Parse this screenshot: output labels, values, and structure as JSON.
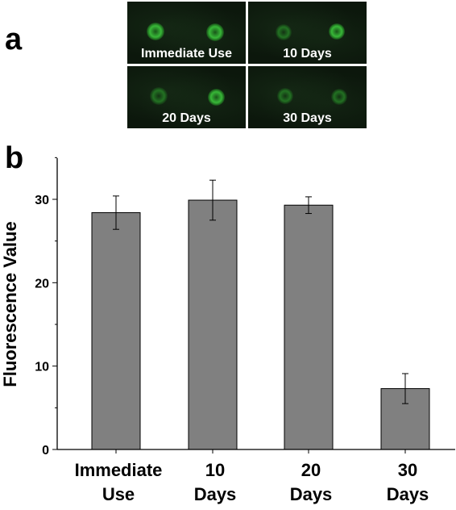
{
  "panels": {
    "a_label": "a",
    "b_label": "b"
  },
  "micrographs": [
    {
      "caption": "Immediate Use",
      "intensity": "bright"
    },
    {
      "caption": "10 Days",
      "intensity": "dim"
    },
    {
      "caption": "20 Days",
      "intensity": "dim"
    },
    {
      "caption": "30 Days",
      "intensity": "dim"
    }
  ],
  "chart_data": {
    "type": "bar",
    "categories": [
      [
        "Immediate",
        "Use"
      ],
      [
        "10",
        "Days"
      ],
      [
        "20",
        "Days"
      ],
      [
        "30",
        "Days"
      ]
    ],
    "values": [
      28.4,
      29.9,
      29.3,
      7.3
    ],
    "errors": [
      2.0,
      2.4,
      1.0,
      1.8
    ],
    "ylabel": "Fluorescence Value",
    "xlabel": "",
    "ylim": [
      0,
      35
    ],
    "yticks": [
      0,
      10,
      20,
      30
    ],
    "bar_color": "#808080",
    "grid": false
  }
}
